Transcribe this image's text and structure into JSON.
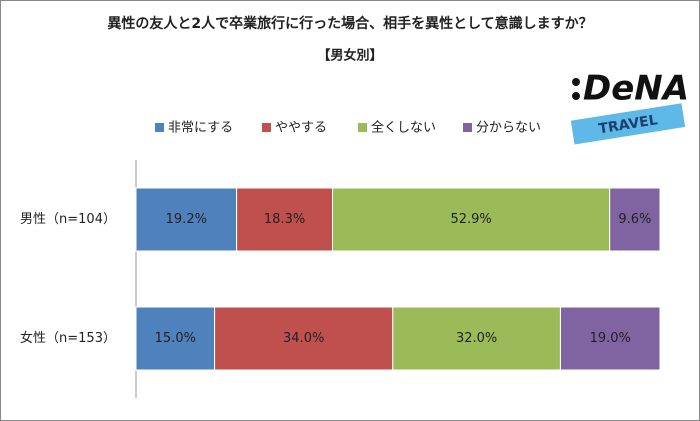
{
  "chart_data": {
    "type": "stacked-barh",
    "title": "異性の友人と2人で卒業旅行に行った場合、相手を異性として意識しますか？",
    "subtitle": "【男女別】",
    "categories": [
      "男性（n=104）",
      "女性（n=153）"
    ],
    "series": [
      {
        "name": "非常にする",
        "color": "#4f81bd",
        "values": [
          19.2,
          15.0
        ],
        "value_labels": [
          "19.2%",
          "15.0%"
        ]
      },
      {
        "name": "ややする",
        "color": "#c0504d",
        "values": [
          18.3,
          34.0
        ],
        "value_labels": [
          "18.3%",
          "34.0%"
        ]
      },
      {
        "name": "全くしない",
        "color": "#9bbb59",
        "values": [
          52.9,
          32.0
        ],
        "value_labels": [
          "52.9%",
          "32.0%"
        ]
      },
      {
        "name": "分からない",
        "color": "#8064a2",
        "values": [
          9.6,
          19.0
        ],
        "value_labels": [
          "9.6%",
          "19.0%"
        ]
      }
    ],
    "xlim": [
      0,
      100
    ]
  },
  "logo": {
    "brand": "DeNA",
    "sub": "TRAVEL"
  }
}
